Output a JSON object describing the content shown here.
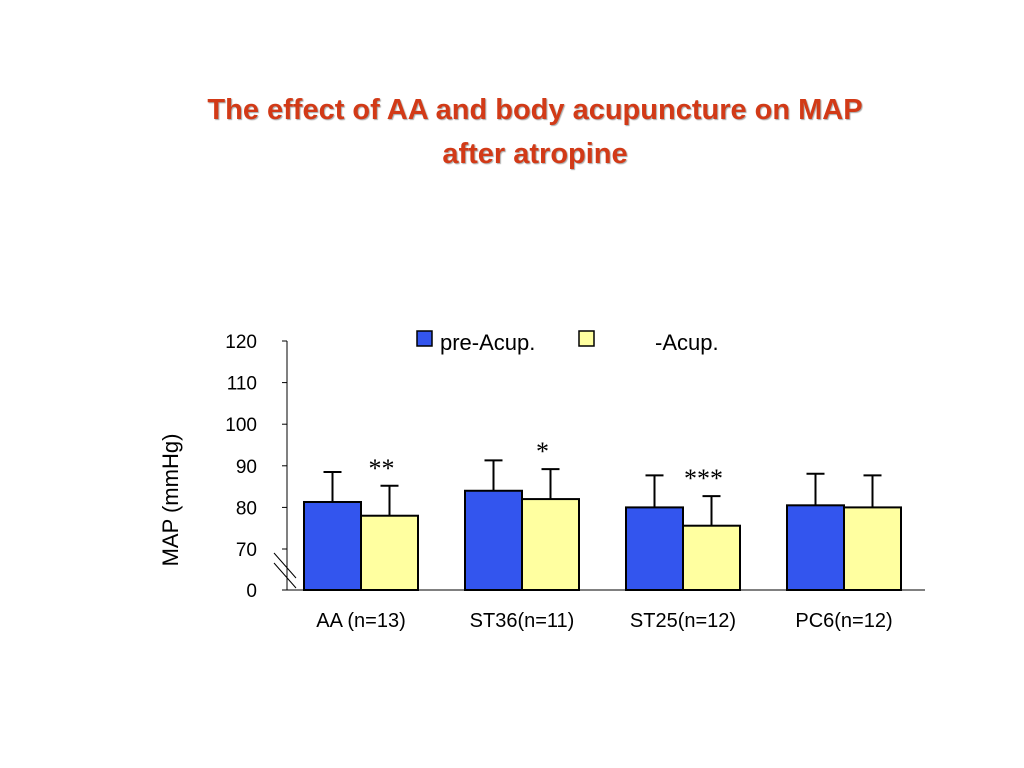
{
  "title": {
    "line1": "The effect of AA and body acupuncture on MAP",
    "line2": "after atropine"
  },
  "colors": {
    "title": "#d23a17",
    "pre": "#3355ee",
    "post": "#ffffa0",
    "outline": "#000000"
  },
  "chart_data": {
    "type": "bar",
    "ylabel": "MAP  (mmHg)",
    "xlabel": "",
    "y_ticks": [
      "120",
      "110",
      "100",
      "90",
      "80",
      "70",
      "0"
    ],
    "axis_break": "between 0 and 70",
    "ylim": [
      60,
      120
    ],
    "categories": [
      "AA (n=13)",
      "ST36(n=11)",
      "ST25(n=12)",
      "PC6(n=12)"
    ],
    "series": [
      {
        "name": "pre-Acup.",
        "values": [
          81.3,
          84,
          80,
          80.5
        ],
        "error": [
          7.2,
          7.3,
          7.7,
          7.6
        ]
      },
      {
        "name": "-Acup.",
        "values": [
          78,
          82,
          75.6,
          80
        ],
        "error": [
          7.2,
          7.2,
          7.1,
          7.7
        ]
      }
    ],
    "significance": [
      "**",
      "*",
      "***",
      ""
    ],
    "legend_position": "top",
    "grid": false
  }
}
